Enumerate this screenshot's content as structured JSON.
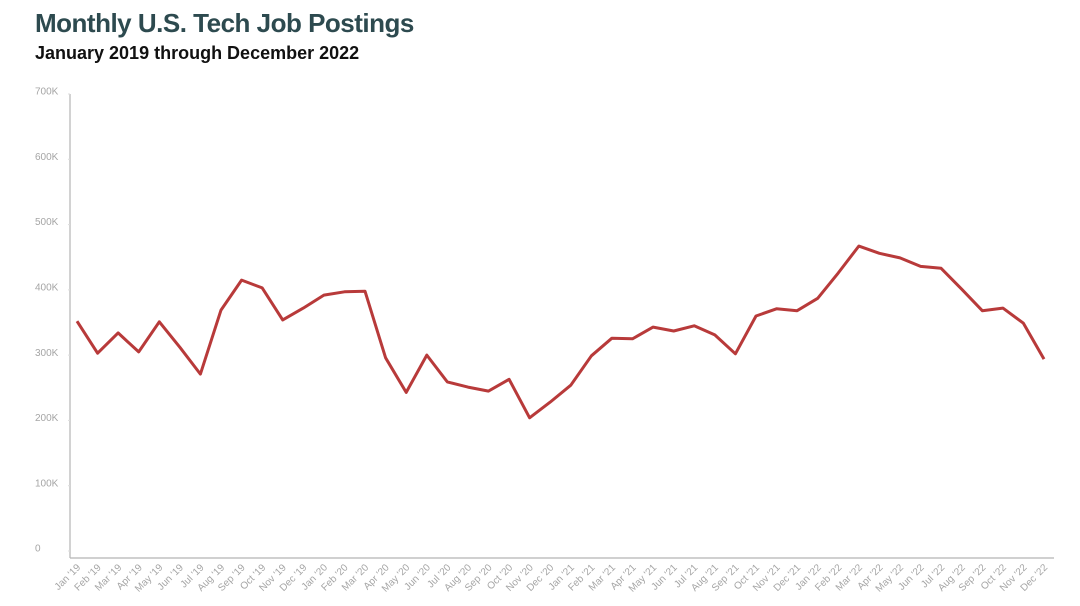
{
  "chart_data": {
    "type": "line",
    "title": "Monthly U.S. Tech Job Postings",
    "subtitle": "January 2019 through December 2022",
    "categories": [
      "Jan '19",
      "Feb '19",
      "Mar '19",
      "Apr '19",
      "May '19",
      "Jun '19",
      "Jul '19",
      "Aug '19",
      "Sep '19",
      "Oct '19",
      "Nov '19",
      "Dec '19",
      "Jan '20",
      "Feb '20",
      "Mar '20",
      "Apr '20",
      "May '20",
      "Jun '20",
      "Jul '20",
      "Aug '20",
      "Sep '20",
      "Oct '20",
      "Nov '20",
      "Dec '20",
      "Jan '21",
      "Feb '21",
      "Mar '21",
      "Apr '21",
      "May '21",
      "Jun '21",
      "Jul '21",
      "Aug '21",
      "Sep '21",
      "Oct '21",
      "Nov '21",
      "Dec '21",
      "Jan '22",
      "Feb '22",
      "Mar '22",
      "Apr '22",
      "May '22",
      "Jun '22",
      "Jul '22",
      "Aug '22",
      "Sep '22",
      "Oct '22",
      "Nov '22",
      "Dec '22"
    ],
    "series": [
      {
        "color": "#b83a3a",
        "values": [
          352000,
          303000,
          334000,
          305000,
          351000,
          312000,
          271000,
          369000,
          415000,
          403000,
          354000,
          372000,
          392000,
          397000,
          398000,
          296000,
          243000,
          300000,
          259000,
          251000,
          245000,
          263000,
          204000,
          228000,
          254000,
          299000,
          326000,
          325000,
          343000,
          337000,
          345000,
          331000,
          302000,
          360000,
          371000,
          368000,
          387000,
          426000,
          467000,
          456000,
          449000,
          436000,
          433000,
          401000,
          368000,
          372000,
          349000,
          294000
        ]
      }
    ],
    "ylim": [
      0,
      700000
    ],
    "yticks": [
      0,
      {
        "value": 100000,
        "label": "100K"
      },
      {
        "value": 200000,
        "label": "200K"
      },
      {
        "value": 300000,
        "label": "300K"
      },
      {
        "value": 400000,
        "label": "400K"
      },
      {
        "value": 500000,
        "label": "500K"
      },
      {
        "value": 600000,
        "label": "600K"
      },
      {
        "value": 700000,
        "label": "700K"
      }
    ],
    "grid": false
  }
}
